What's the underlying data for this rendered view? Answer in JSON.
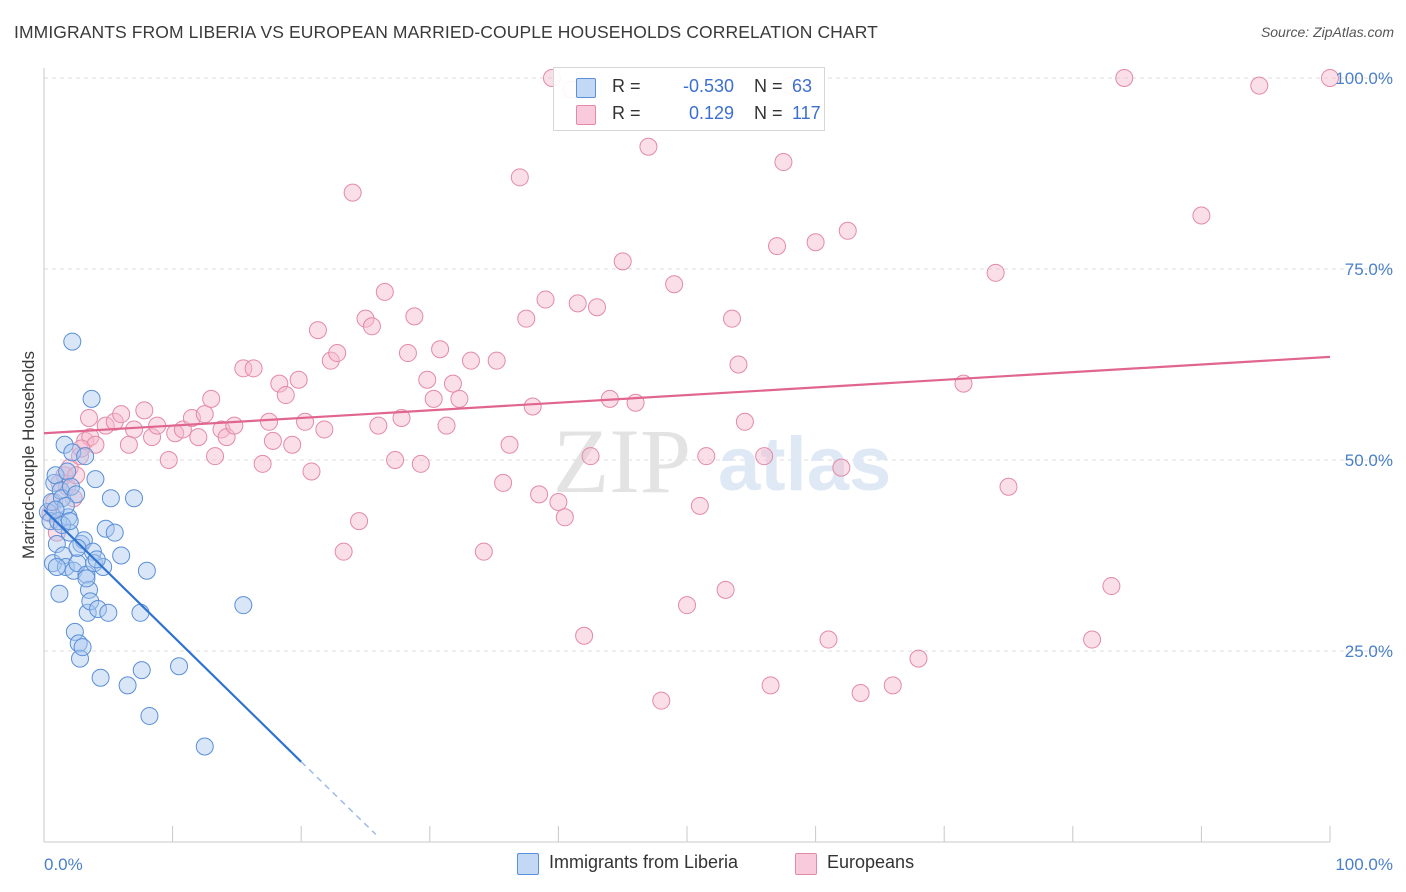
{
  "header": {
    "title": "IMMIGRANTS FROM LIBERIA VS EUROPEAN MARRIED-COUPLE HOUSEHOLDS CORRELATION CHART",
    "source": "Source: ZipAtlas.com"
  },
  "watermark": {
    "zip": "ZIP",
    "atlas": "atlas"
  },
  "legend": {
    "rows": [
      {
        "r_label": "R =",
        "r_value": "-0.530",
        "n_label": "N =",
        "n_value": "63",
        "color": "#a9c8f0"
      },
      {
        "r_label": "R =",
        "r_value": "0.129",
        "n_label": "N =",
        "n_value": "117",
        "color": "#f7b8cc"
      }
    ]
  },
  "bottom_legend": {
    "series1": "Immigrants from Liberia",
    "series2": "Europeans"
  },
  "colors": {
    "blue_fill": "#a9c8f0",
    "blue_stroke": "#5b8fd6",
    "blue_line": "#2f72d0",
    "pink_fill": "#f7b8cc",
    "pink_stroke": "#e38aa8",
    "pink_line": "#e06690",
    "grid": "#dcdcdc",
    "tick_text": "#4a7fc9"
  },
  "chart_data": {
    "type": "scatter",
    "title": "IMMIGRANTS FROM LIBERIA VS EUROPEAN MARRIED-COUPLE HOUSEHOLDS CORRELATION CHART",
    "xlabel": "",
    "ylabel": "Married-couple Households",
    "xlim": [
      0,
      100
    ],
    "ylim": [
      0,
      100
    ],
    "x_tick_labels": [
      "0.0%",
      "100.0%"
    ],
    "y_tick_labels": [
      "25.0%",
      "50.0%",
      "75.0%",
      "100.0%"
    ],
    "y_ticks": [
      25,
      50,
      75,
      100
    ],
    "grid": true,
    "legend_placement": "top-center",
    "series": [
      {
        "name": "Immigrants from Liberia",
        "r": -0.53,
        "n": 63,
        "trend": {
          "x": [
            0.0,
            20.0
          ],
          "y": [
            43.5,
            10.5
          ],
          "dashed_x": [
            20.0,
            25.8
          ],
          "dashed_y": [
            10.5,
            1.0
          ]
        },
        "points": [
          [
            0.3,
            43.2
          ],
          [
            0.5,
            42.0
          ],
          [
            0.6,
            44.5
          ],
          [
            0.7,
            36.5
          ],
          [
            0.8,
            47.0
          ],
          [
            0.9,
            48.0
          ],
          [
            1.0,
            39.0
          ],
          [
            1.1,
            42.0
          ],
          [
            1.2,
            32.5
          ],
          [
            1.3,
            46.0
          ],
          [
            1.4,
            45.0
          ],
          [
            1.5,
            37.5
          ],
          [
            1.6,
            52.0
          ],
          [
            1.7,
            36.0
          ],
          [
            1.8,
            48.5
          ],
          [
            1.9,
            42.5
          ],
          [
            2.0,
            40.5
          ],
          [
            2.1,
            46.5
          ],
          [
            2.2,
            51.0
          ],
          [
            2.3,
            35.5
          ],
          [
            2.4,
            27.5
          ],
          [
            2.5,
            45.5
          ],
          [
            2.6,
            36.5
          ],
          [
            2.7,
            26.0
          ],
          [
            2.8,
            24.0
          ],
          [
            2.9,
            39.0
          ],
          [
            3.0,
            25.5
          ],
          [
            3.1,
            39.5
          ],
          [
            3.2,
            50.5
          ],
          [
            3.3,
            35.0
          ],
          [
            3.4,
            30.0
          ],
          [
            3.5,
            33.0
          ],
          [
            3.6,
            31.5
          ],
          [
            3.7,
            58.0
          ],
          [
            3.8,
            38.0
          ],
          [
            3.9,
            36.5
          ],
          [
            4.0,
            47.5
          ],
          [
            4.2,
            30.5
          ],
          [
            4.4,
            21.5
          ],
          [
            4.6,
            36.0
          ],
          [
            4.8,
            41.0
          ],
          [
            5.0,
            30.0
          ],
          [
            5.2,
            45.0
          ],
          [
            5.5,
            40.5
          ],
          [
            6.0,
            37.5
          ],
          [
            6.5,
            20.5
          ],
          [
            7.0,
            45.0
          ],
          [
            7.5,
            30.0
          ],
          [
            7.6,
            22.5
          ],
          [
            8.0,
            35.5
          ],
          [
            8.2,
            16.5
          ],
          [
            10.5,
            23.0
          ],
          [
            12.5,
            12.5
          ],
          [
            15.5,
            31.0
          ],
          [
            2.2,
            65.5
          ],
          [
            1.0,
            36.0
          ],
          [
            2.6,
            38.5
          ],
          [
            3.3,
            34.5
          ],
          [
            1.7,
            44.0
          ],
          [
            0.9,
            43.5
          ],
          [
            1.4,
            41.5
          ],
          [
            2.0,
            42.0
          ],
          [
            4.1,
            37.0
          ]
        ]
      },
      {
        "name": "Europeans",
        "r": 0.129,
        "n": 117,
        "trend": {
          "x": [
            0.0,
            100.0
          ],
          "y": [
            53.5,
            63.5
          ]
        },
        "points": [
          [
            0.5,
            43.0
          ],
          [
            0.8,
            44.5
          ],
          [
            1.2,
            47.0
          ],
          [
            1.6,
            48.0
          ],
          [
            1.8,
            46.5
          ],
          [
            2.0,
            49.0
          ],
          [
            2.3,
            45.0
          ],
          [
            2.5,
            48.0
          ],
          [
            2.8,
            50.5
          ],
          [
            3.2,
            52.5
          ],
          [
            3.6,
            53.0
          ],
          [
            4.0,
            52.0
          ],
          [
            4.8,
            54.5
          ],
          [
            5.5,
            55.0
          ],
          [
            6.0,
            56.0
          ],
          [
            7.0,
            54.0
          ],
          [
            7.8,
            56.5
          ],
          [
            8.4,
            53.0
          ],
          [
            8.8,
            54.5
          ],
          [
            9.7,
            50.0
          ],
          [
            10.2,
            53.5
          ],
          [
            10.8,
            54.0
          ],
          [
            11.5,
            55.5
          ],
          [
            12.0,
            53.0
          ],
          [
            12.5,
            56.0
          ],
          [
            13.0,
            58.0
          ],
          [
            13.3,
            50.5
          ],
          [
            13.8,
            54.0
          ],
          [
            14.2,
            53.0
          ],
          [
            14.8,
            54.5
          ],
          [
            15.5,
            62.0
          ],
          [
            16.3,
            62.0
          ],
          [
            17.0,
            49.5
          ],
          [
            17.5,
            55.0
          ],
          [
            17.8,
            52.5
          ],
          [
            18.3,
            60.0
          ],
          [
            18.8,
            58.5
          ],
          [
            19.3,
            52.0
          ],
          [
            19.8,
            60.5
          ],
          [
            20.3,
            55.0
          ],
          [
            20.8,
            48.5
          ],
          [
            21.3,
            67.0
          ],
          [
            21.8,
            54.0
          ],
          [
            22.3,
            63.0
          ],
          [
            22.8,
            64.0
          ],
          [
            23.3,
            38.0
          ],
          [
            24.0,
            85.0
          ],
          [
            24.5,
            42.0
          ],
          [
            25.0,
            68.5
          ],
          [
            25.5,
            67.5
          ],
          [
            26.0,
            54.5
          ],
          [
            26.5,
            72.0
          ],
          [
            27.3,
            50.0
          ],
          [
            27.8,
            55.5
          ],
          [
            28.3,
            64.0
          ],
          [
            28.8,
            68.8
          ],
          [
            29.3,
            49.5
          ],
          [
            29.8,
            60.5
          ],
          [
            30.3,
            58.0
          ],
          [
            30.8,
            64.5
          ],
          [
            31.3,
            54.5
          ],
          [
            31.8,
            60.0
          ],
          [
            32.3,
            58.0
          ],
          [
            33.2,
            63.0
          ],
          [
            34.2,
            38.0
          ],
          [
            35.2,
            63.0
          ],
          [
            35.7,
            47.0
          ],
          [
            36.2,
            52.0
          ],
          [
            37.0,
            87.0
          ],
          [
            37.5,
            68.5
          ],
          [
            38.0,
            57.0
          ],
          [
            38.5,
            45.5
          ],
          [
            39.0,
            71.0
          ],
          [
            39.5,
            100.0
          ],
          [
            40.0,
            44.5
          ],
          [
            40.5,
            42.5
          ],
          [
            41.0,
            98.5
          ],
          [
            41.5,
            70.5
          ],
          [
            42.0,
            27.0
          ],
          [
            42.5,
            50.5
          ],
          [
            43.0,
            70.0
          ],
          [
            44.0,
            58.0
          ],
          [
            45.0,
            76.0
          ],
          [
            46.0,
            57.5
          ],
          [
            47.0,
            91.0
          ],
          [
            48.0,
            18.5
          ],
          [
            49.0,
            73.0
          ],
          [
            50.0,
            31.0
          ],
          [
            51.0,
            44.0
          ],
          [
            51.5,
            50.5
          ],
          [
            53.0,
            33.0
          ],
          [
            53.5,
            68.5
          ],
          [
            54.0,
            62.5
          ],
          [
            54.5,
            55.0
          ],
          [
            56.0,
            50.5
          ],
          [
            56.5,
            20.5
          ],
          [
            57.0,
            78.0
          ],
          [
            57.5,
            89.0
          ],
          [
            58.0,
            99.0
          ],
          [
            60.0,
            78.5
          ],
          [
            61.0,
            26.5
          ],
          [
            62.0,
            49.0
          ],
          [
            62.5,
            80.0
          ],
          [
            63.5,
            19.5
          ],
          [
            66.0,
            20.5
          ],
          [
            68.0,
            24.0
          ],
          [
            71.5,
            60.0
          ],
          [
            74.0,
            74.5
          ],
          [
            75.0,
            46.5
          ],
          [
            81.5,
            26.5
          ],
          [
            83.0,
            33.5
          ],
          [
            84.0,
            100.0
          ],
          [
            90.0,
            82.0
          ],
          [
            100.0,
            100.0
          ],
          [
            94.5,
            99.0
          ],
          [
            1.0,
            40.5
          ],
          [
            2.9,
            51.5
          ],
          [
            3.5,
            55.5
          ],
          [
            6.6,
            52.0
          ]
        ]
      }
    ]
  }
}
